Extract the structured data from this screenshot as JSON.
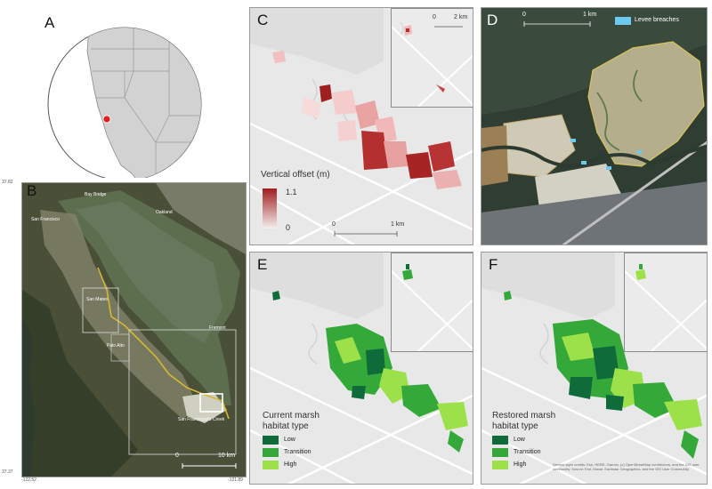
{
  "panels": {
    "a": {
      "letter": "A"
    },
    "b": {
      "letter": "B",
      "place_labels": [
        "Bay Bridge",
        "San Francisco",
        "Oakland",
        "San Mateo",
        "Fremont",
        "Palo Alto",
        "San Francisquito Creek"
      ],
      "scale_zero": "0",
      "scale_end": "10 km",
      "lat_top": "37.82",
      "lat_bottom": "37.37",
      "lon_left": "-122.52",
      "lon_right": "-121.89"
    },
    "c": {
      "letter": "C",
      "legend_title": "Vertical offset (m)",
      "legend_max": "1.1",
      "legend_min": "0",
      "scale_zero": "0",
      "scale_end": "1 km",
      "inset_scale_zero": "0",
      "inset_scale_end": "2 km",
      "ramp_colors": [
        "#a01d1d",
        "#f5eded"
      ]
    },
    "d": {
      "letter": "D",
      "legend_label": "Levee breaches",
      "legend_color": "#6ec9f0",
      "scale_zero": "0",
      "scale_end": "1 km"
    },
    "e": {
      "letter": "E",
      "legend_title": "Current marsh habitat type",
      "classes": [
        {
          "label": "Low",
          "color": "#0f6b3a"
        },
        {
          "label": "Transition",
          "color": "#35a83a"
        },
        {
          "label": "High",
          "color": "#9de14a"
        }
      ]
    },
    "f": {
      "letter": "F",
      "legend_title": "Restored marsh habitat type",
      "classes": [
        {
          "label": "Low",
          "color": "#0f6b3a"
        },
        {
          "label": "Transition",
          "color": "#35a83a"
        },
        {
          "label": "High",
          "color": "#9de14a"
        }
      ],
      "credits": "Service layer credits: Esri, HERE, Garmin, (c) OpenStreetMap contributors, and the GIS user community. Source: Esri, Maxar, Earthstar Geographics, and the GIS User Community"
    }
  }
}
